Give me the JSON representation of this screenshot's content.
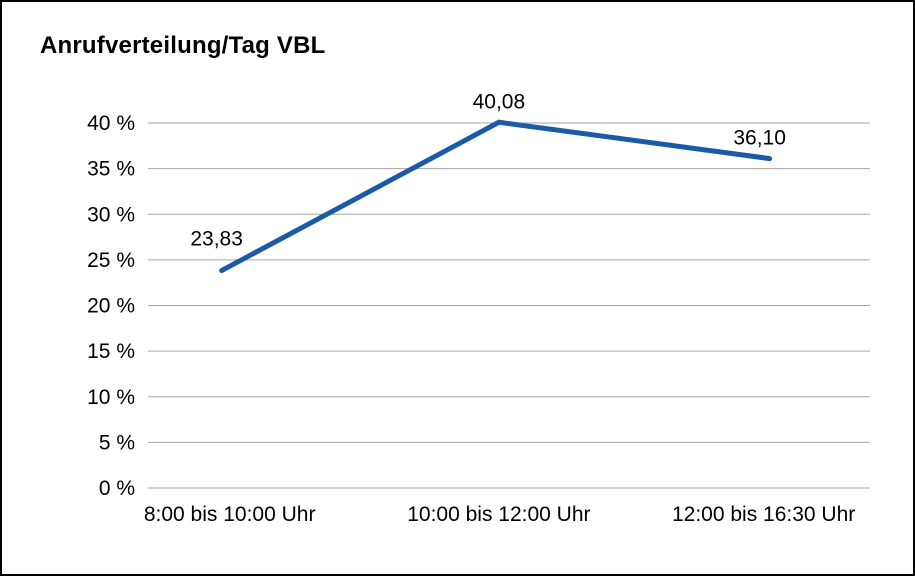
{
  "page": {
    "title": "Anrufverteilung/Tag VBL"
  },
  "chart_data": {
    "type": "line",
    "title": "Anrufverteilung/Tag VBL",
    "categories": [
      "8:00 bis 10:00 Uhr",
      "10:00 bis 12:00 Uhr",
      "12:00 bis 16:30 Uhr"
    ],
    "values": [
      23.83,
      40.08,
      36.1
    ],
    "value_labels": [
      "23,83",
      "40,08",
      "36,10"
    ],
    "xlabel": "",
    "ylabel": "",
    "ylim": [
      0,
      40
    ],
    "ytick_step": 5,
    "ytick_suffix": " %",
    "grid": "horizontal",
    "legend": "none",
    "colors": {
      "line": "#1b5aa6",
      "grid": "#a6a6a6",
      "text": "#000000",
      "frame_border": "#000000",
      "background": "#ffffff"
    }
  }
}
